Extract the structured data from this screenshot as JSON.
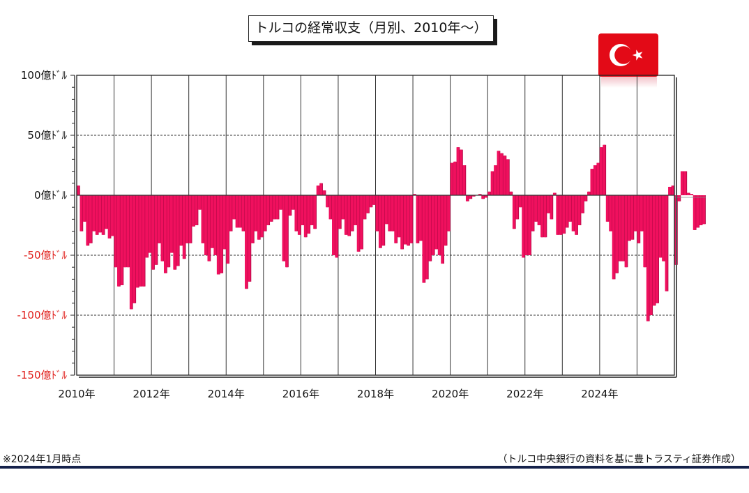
{
  "title": "トルコの経常収支（月別、2010年〜）",
  "note_left": "※2024年1月時点",
  "note_right": "（トルコ中央銀行の資料を基に豊トラスティ証券作成）",
  "flag_icon": "turkey-flag-icon",
  "colors": {
    "bar": "#f0105e",
    "bar_shade": "#b00845",
    "positive_tick": "#111111",
    "negative_tick": "#e0201c",
    "flag_red": "#e30a17"
  },
  "chart_data": {
    "type": "bar",
    "title": "トルコの経常収支（月別、2010年〜）",
    "unit": "億ドル",
    "ylim": [
      -150,
      100
    ],
    "yticks": [
      100,
      50,
      0,
      -50,
      -100,
      -150
    ],
    "ytick_labels": [
      "100億ﾄﾞﾙ",
      "50億ﾄﾞﾙ",
      "0億ﾄﾞﾙ",
      "-50億ﾄﾞﾙ",
      "-100億ﾄﾞﾙ",
      "-150億ﾄﾞﾙ"
    ],
    "xlim": [
      "2010-01",
      "2025-12"
    ],
    "xtick_labels": [
      "2010年",
      "2012年",
      "2014年",
      "2016年",
      "2018年",
      "2020年",
      "2022年",
      "2024年"
    ],
    "grid": {
      "horizontal": "dashed",
      "vertical": "solid"
    },
    "start": "2010-01",
    "series": [
      {
        "values": [
          8,
          -30,
          -22,
          -42,
          -40,
          -30,
          -33,
          -31,
          -33,
          -28,
          -36,
          -34,
          -60,
          -76,
          -75,
          -60,
          -60,
          -95,
          -90,
          -77,
          -76,
          -76,
          -52,
          -48,
          -62,
          -58,
          -40,
          -55,
          -65,
          -60,
          -48,
          -62,
          -59,
          -42,
          -53,
          -40,
          -40,
          -26,
          -25,
          -12,
          -40,
          -50,
          -55,
          -44,
          -50,
          -66,
          -65,
          -45,
          -57,
          -30,
          -20,
          -27,
          -27,
          -30,
          -78,
          -72,
          -40,
          -30,
          -37,
          -35,
          -30,
          -25,
          -22,
          -20,
          -20,
          -12,
          -55,
          -60,
          -17,
          -12,
          -30,
          -33,
          -25,
          -35,
          -32,
          -25,
          -28,
          8,
          10,
          4,
          -10,
          -20,
          -50,
          -52,
          -28,
          -20,
          -33,
          -34,
          -30,
          -25,
          -47,
          -45,
          -20,
          -15,
          -10,
          -8,
          -30,
          -44,
          -42,
          -24,
          -30,
          -30,
          -40,
          -35,
          -45,
          -41,
          -42,
          -40,
          1,
          -40,
          -38,
          -73,
          -70,
          -55,
          -50,
          -45,
          -50,
          -57,
          -42,
          -30,
          27,
          28,
          40,
          38,
          25,
          -5,
          -3,
          -1,
          0,
          1,
          -3,
          -2,
          3,
          20,
          25,
          37,
          35,
          33,
          30,
          3,
          -28,
          -20,
          -10,
          -52,
          -50,
          -50,
          -30,
          -22,
          -25,
          -35,
          -35,
          -15,
          -20,
          2,
          -33,
          -33,
          -32,
          -27,
          -22,
          -30,
          -33,
          -25,
          -15,
          -5,
          3,
          22,
          25,
          27,
          40,
          42,
          -22,
          -30,
          -70,
          -65,
          -55,
          -55,
          -60,
          -38,
          -37,
          -30,
          -40,
          -30,
          -60,
          -105,
          -100,
          -92,
          -90,
          -52,
          -55,
          -80,
          7,
          8,
          -58,
          -5,
          20,
          20,
          2,
          1,
          -29,
          -27,
          -25,
          -24
        ]
      }
    ]
  }
}
